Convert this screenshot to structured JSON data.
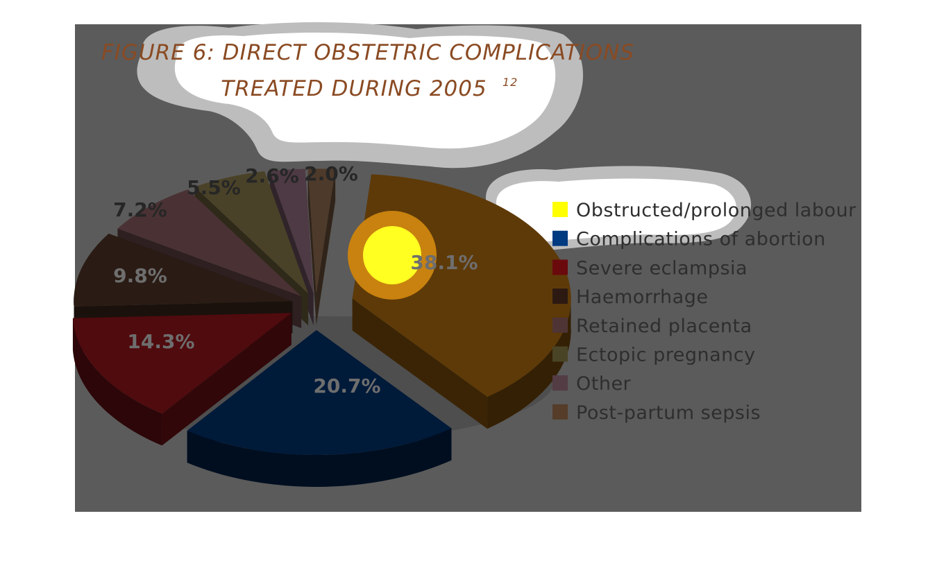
{
  "chart_data": {
    "type": "pie",
    "title_line1": "FIGURE 6: DIRECT OBSTETRIC COMPLICATIONS",
    "title_line2": "TREATED DURING 2005",
    "title_superscript": "12",
    "legend_position": "right",
    "slices": [
      {
        "label": "Obstructed/prolonged labour",
        "value": 38.1,
        "value_label": "38.1%",
        "color": "#5e3a08",
        "legend_color": "#ffff00"
      },
      {
        "label": "Complications of abortion",
        "value": 20.7,
        "value_label": "20.7%",
        "color": "#001a3a",
        "legend_color": "#003a80"
      },
      {
        "label": "Severe eclampsia",
        "value": 14.3,
        "value_label": "14.3%",
        "color": "#500b0e",
        "legend_color": "#6a0a0d"
      },
      {
        "label": "Haemorrhage",
        "value": 9.8,
        "value_label": "9.8%",
        "color": "#2a1b14",
        "legend_color": "#2c1a12"
      },
      {
        "label": "Retained placenta",
        "value": 7.2,
        "value_label": "7.2%",
        "color": "#4a3234",
        "legend_color": "#4e3434"
      },
      {
        "label": "Ectopic pregnancy",
        "value": 5.5,
        "value_label": "5.5%",
        "color": "#4a4228",
        "legend_color": "#4a4426"
      },
      {
        "label": "Other",
        "value": 2.6,
        "value_label": "2.6%",
        "color": "#4e3a44",
        "legend_color": "#533c44"
      },
      {
        "label": "Post-partum sepsis",
        "value": 2.0,
        "value_label": "2.0%",
        "color": "#4e3a2a",
        "legend_color": "#553d2a"
      }
    ]
  }
}
